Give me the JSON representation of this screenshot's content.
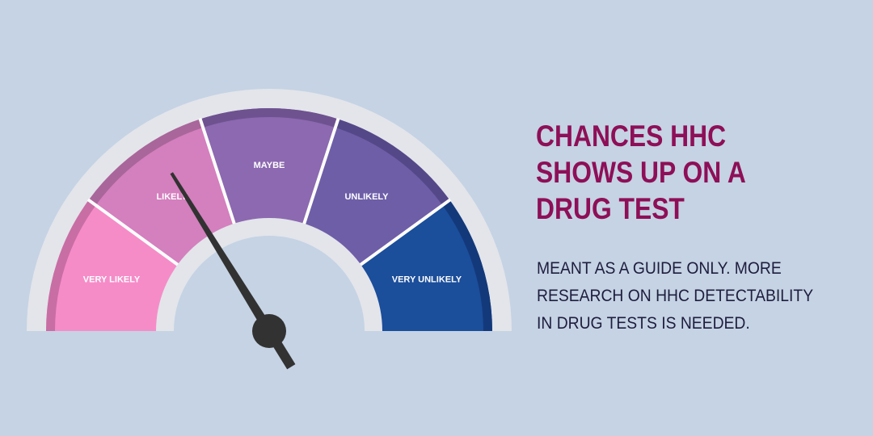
{
  "gauge": {
    "segments": [
      {
        "label": "VERY LIKELY",
        "color": "#f58cc8",
        "shade": "#c86ea4"
      },
      {
        "label": "LIKELY",
        "color": "#d47fbe",
        "shade": "#a9669a"
      },
      {
        "label": "MAYBE",
        "color": "#8c69b0",
        "shade": "#6e5290"
      },
      {
        "label": "UNLIKELY",
        "color": "#6e5ea8",
        "shade": "#554888"
      },
      {
        "label": "VERY UNLIKELY",
        "color": "#1b4e9b",
        "shade": "#14397a"
      }
    ],
    "rim_color": "#e3e5ea",
    "needle_color": "#323232",
    "pointer": "LIKELY"
  },
  "headline": {
    "lines": [
      "CHANCES HHC",
      "SHOWS UP ON A",
      "DRUG TEST"
    ],
    "color": "#8e0f57"
  },
  "note": {
    "lines": [
      "MEANT AS A GUIDE ONLY. MORE",
      "RESEARCH ON HHC DETECTABILITY",
      "IN DRUG TESTS IS NEEDED."
    ],
    "color": "#1e1d3d"
  }
}
